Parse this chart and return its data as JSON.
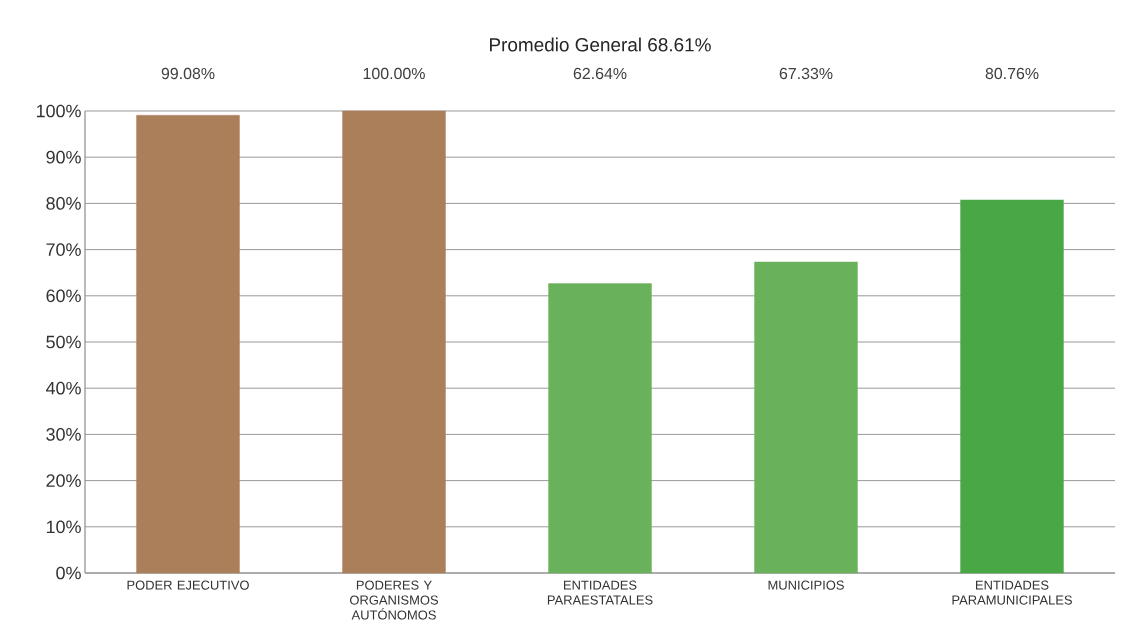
{
  "chart_data": {
    "type": "bar",
    "title": "Promedio General 68.61%",
    "categories": [
      "PODER EJECUTIVO",
      "PODERES Y ORGANISMOS AUTÓNOMOS",
      "ENTIDADES PARAESTATALES",
      "MUNICIPIOS",
      "ENTIDADES PARAMUNICIPALES"
    ],
    "values": [
      99.08,
      100.0,
      62.64,
      67.33,
      80.76
    ],
    "colors": [
      "#ab7f5a",
      "#ab7f5a",
      "#6ab15c",
      "#6ab15c",
      "#4aa746"
    ],
    "data_labels": true,
    "value_labels": [
      "99.08%",
      "100.00%",
      "62.64%",
      "67.33%",
      "80.76%"
    ],
    "ylim": [
      0,
      100
    ],
    "yticks": [
      {
        "value": 0,
        "label": "0%"
      },
      {
        "value": 10,
        "label": "10%"
      },
      {
        "value": 20,
        "label": "20%"
      },
      {
        "value": 30,
        "label": "30%"
      },
      {
        "value": 40,
        "label": "40%"
      },
      {
        "value": 50,
        "label": "50%"
      },
      {
        "value": 60,
        "label": "60%"
      },
      {
        "value": 70,
        "label": "70%"
      },
      {
        "value": 80,
        "label": "80%"
      },
      {
        "value": 90,
        "label": "90%"
      },
      {
        "value": 100,
        "label": "100%"
      }
    ],
    "grid": "y"
  }
}
